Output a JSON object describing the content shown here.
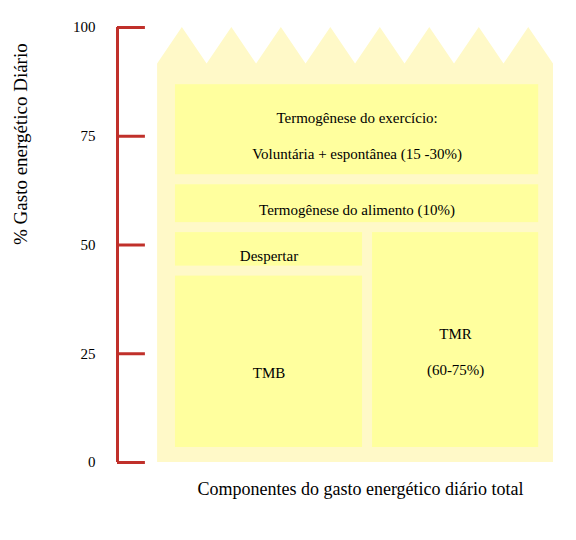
{
  "chart_data": {
    "type": "stacked bar",
    "ylabel": "% Gasto energético Diário",
    "xlabel": "Componentes do gasto energético diário total",
    "ylim": [
      0,
      100
    ],
    "yticks": [
      0,
      25,
      50,
      75,
      100
    ],
    "color": "#ffff9e",
    "segments": [
      {
        "label": "TMB",
        "value": 44,
        "columns": [
          0
        ]
      },
      {
        "label": "Despertar",
        "value": 10,
        "columns": [
          0
        ]
      },
      {
        "label": "TMR",
        "sublabel": "(60-75%)",
        "value": 54,
        "columns": [
          1
        ]
      },
      {
        "label": "Termogênese do alimento (10%)",
        "value": 11,
        "columns": [
          0,
          1
        ]
      },
      {
        "label": "Termogênese do exercício:",
        "sublabel": "Voluntária + espontânea (15 -30%)",
        "value": 23,
        "columns": [
          0,
          1
        ]
      }
    ]
  }
}
